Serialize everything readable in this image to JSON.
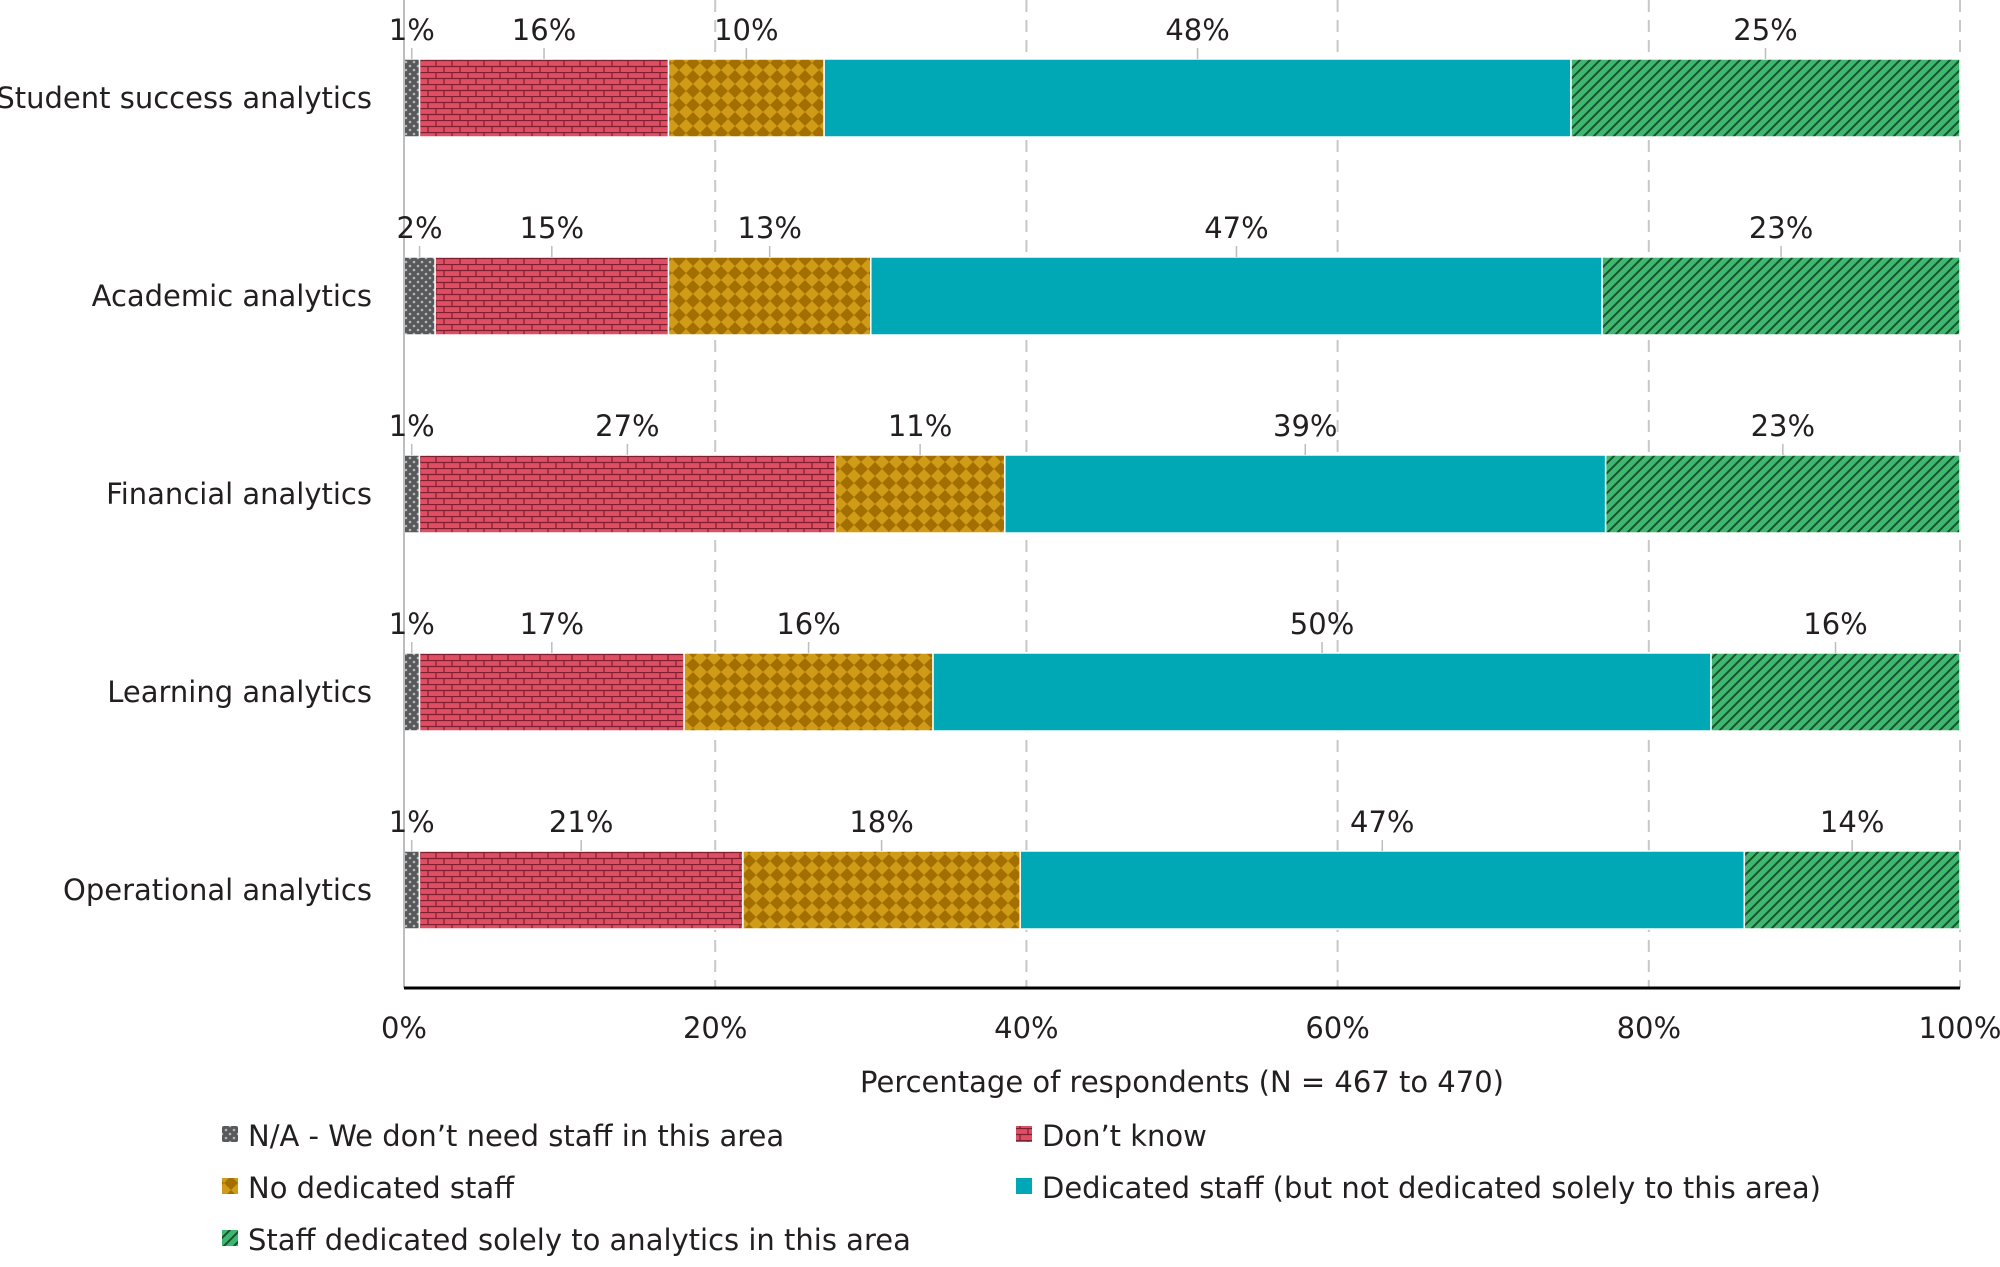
{
  "chart_data": {
    "type": "bar",
    "orientation": "horizontal",
    "stacked": true,
    "xlabel": "Percentage of respondents (N = 467 to 470)",
    "xlim": [
      0,
      100
    ],
    "xticks": [
      "0%",
      "20%",
      "40%",
      "60%",
      "80%",
      "100%"
    ],
    "grid": "vertical dashed",
    "legend_position": "bottom",
    "categories": [
      "Student success analytics",
      "Academic analytics",
      "Financial analytics",
      "Learning analytics",
      "Operational analytics"
    ],
    "series": [
      {
        "name": "N/A - We don’t need staff in this area",
        "color": "#58595b",
        "pattern": "dots",
        "values": [
          1,
          2,
          1,
          1,
          1
        ],
        "labels": [
          "1%",
          "2%",
          "1%",
          "1%",
          "1%"
        ]
      },
      {
        "name": "Don’t know",
        "color": "#e04e64",
        "pattern": "bricks",
        "values": [
          16,
          15,
          27,
          17,
          21
        ],
        "labels": [
          "16%",
          "15%",
          "27%",
          "17%",
          "21%"
        ]
      },
      {
        "name": "No dedicated staff",
        "color": "#d09b16",
        "pattern": "checker",
        "values": [
          10,
          13,
          11,
          16,
          18
        ],
        "labels": [
          "10%",
          "13%",
          "11%",
          "16%",
          "18%"
        ]
      },
      {
        "name": "Dedicated staff (but not dedicated solely to this area)",
        "color": "#00a7b5",
        "pattern": "solid",
        "values": [
          48,
          47,
          39,
          50,
          47
        ],
        "labels": [
          "48%",
          "47%",
          "39%",
          "50%",
          "47%"
        ]
      },
      {
        "name": "Staff dedicated solely to analytics in this area",
        "color": "#3db86e",
        "pattern": "diagonal",
        "values": [
          25,
          23,
          23,
          16,
          14
        ],
        "labels": [
          "25%",
          "23%",
          "23%",
          "16%",
          "14%"
        ]
      }
    ]
  }
}
